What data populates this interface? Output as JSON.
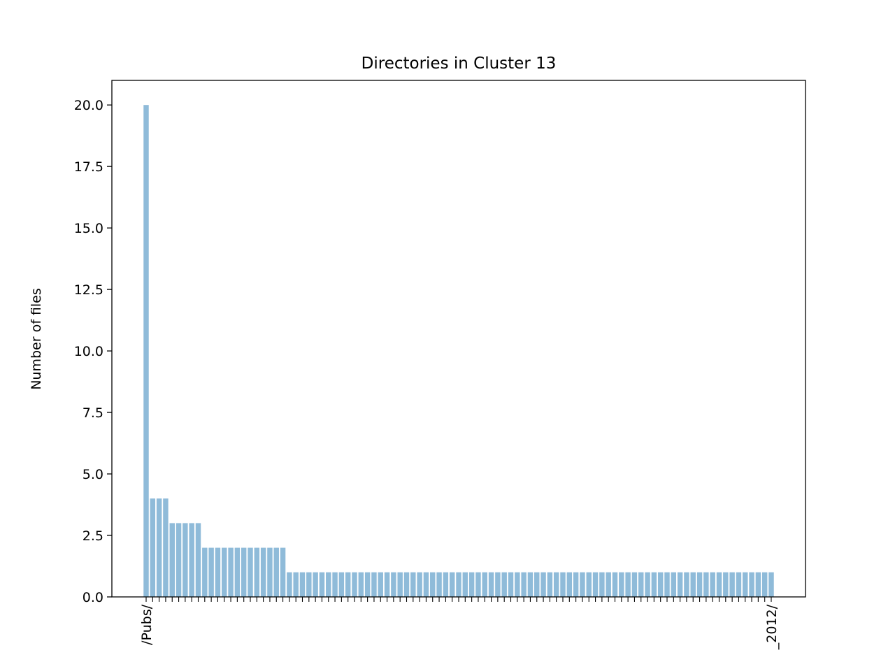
{
  "chart_data": {
    "type": "bar",
    "title": "Directories in Cluster 13",
    "xlabel": "",
    "ylabel": "Number of files",
    "ylim": [
      0,
      21
    ],
    "yticks": [
      "0.0",
      "2.5",
      "5.0",
      "7.5",
      "10.0",
      "12.5",
      "15.0",
      "17.5",
      "20.0"
    ],
    "grid": false,
    "bar_color": "#8fbbd9",
    "categories": [
      "/Pubs/",
      "",
      "",
      "",
      "",
      "",
      "",
      "",
      "",
      "",
      "",
      "",
      "",
      "",
      "",
      "",
      "",
      "",
      "",
      "",
      "",
      "",
      "",
      "",
      "",
      "",
      "",
      "",
      "",
      "",
      "",
      "",
      "",
      "",
      "",
      "",
      "",
      "",
      "",
      "",
      "",
      "",
      "",
      "",
      "",
      "",
      "",
      "",
      "",
      "",
      "",
      "",
      "",
      "",
      "",
      "",
      "",
      "",
      "",
      "",
      "",
      "",
      "",
      "",
      "",
      "",
      "",
      "",
      "",
      "",
      "",
      "",
      "",
      "",
      "",
      "",
      "",
      "",
      "",
      "",
      "",
      "",
      "",
      "",
      "",
      "",
      "",
      "",
      "",
      "",
      "",
      "",
      "",
      "",
      "",
      "",
      "_2012/"
    ],
    "values": [
      20,
      4,
      4,
      4,
      3,
      3,
      3,
      3,
      3,
      2,
      2,
      2,
      2,
      2,
      2,
      2,
      2,
      2,
      2,
      2,
      2,
      2,
      1,
      1,
      1,
      1,
      1,
      1,
      1,
      1,
      1,
      1,
      1,
      1,
      1,
      1,
      1,
      1,
      1,
      1,
      1,
      1,
      1,
      1,
      1,
      1,
      1,
      1,
      1,
      1,
      1,
      1,
      1,
      1,
      1,
      1,
      1,
      1,
      1,
      1,
      1,
      1,
      1,
      1,
      1,
      1,
      1,
      1,
      1,
      1,
      1,
      1,
      1,
      1,
      1,
      1,
      1,
      1,
      1,
      1,
      1,
      1,
      1,
      1,
      1,
      1,
      1,
      1,
      1,
      1,
      1,
      1,
      1,
      1,
      1,
      1,
      1
    ]
  }
}
